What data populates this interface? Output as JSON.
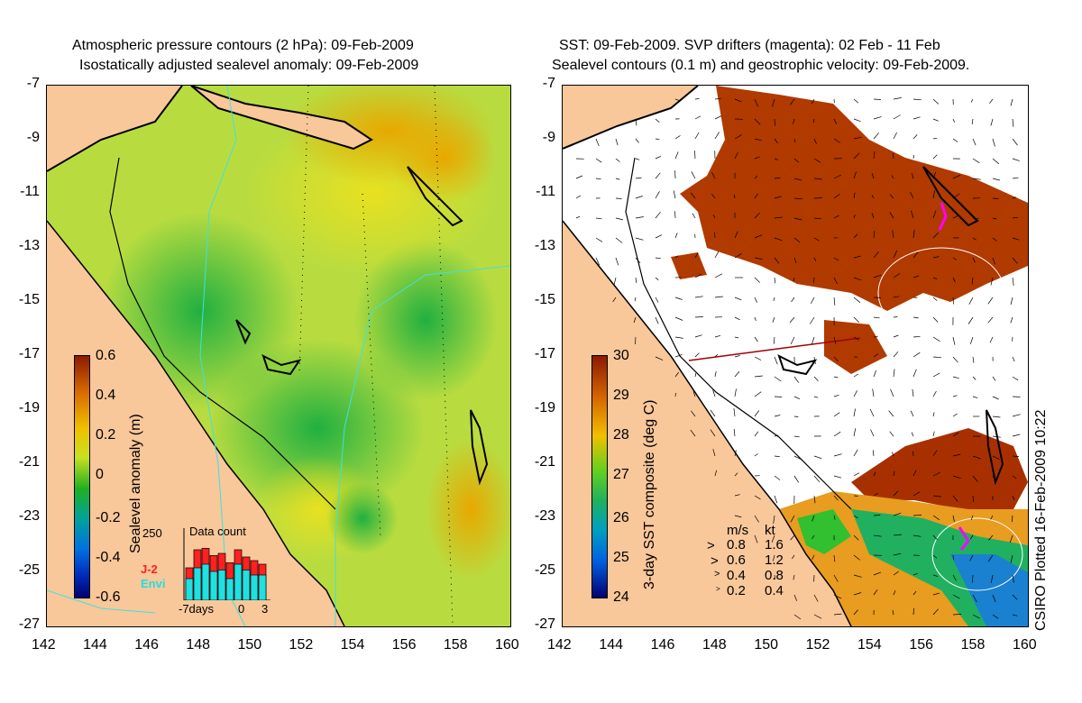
{
  "left_panel": {
    "title_line1": "Atmospheric pressure contours (2 hPa): 09-Feb-2009",
    "title_line2": "Isostatically adjusted sealevel anomaly: 09-Feb-2009",
    "colorbar_label": "Sealevel anomaly (m)",
    "colorbar_ticks": [
      "0.6",
      "0.4",
      "0.2",
      "0",
      "-0.2",
      "-0.4",
      "-0.6"
    ],
    "inset": {
      "ymax_label": "250",
      "title": "Data count",
      "legend_j2": "J-2",
      "legend_envi": "Envi",
      "xlabel_left": "-7days",
      "xlabel_mid": "0",
      "xlabel_right": "3",
      "bars_total": [
        0.45,
        0.7,
        0.72,
        0.62,
        0.65,
        0.52,
        0.7,
        0.6,
        0.55,
        0.5
      ],
      "bars_envi": [
        0.3,
        0.45,
        0.5,
        0.4,
        0.42,
        0.3,
        0.5,
        0.42,
        0.35,
        0.35
      ]
    }
  },
  "right_panel": {
    "title_line1": "SST: 09-Feb-2009. SVP drifters (magenta): 02 Feb - 11 Feb",
    "title_line2": "Sealevel contours (0.1 m) and geostrophic velocity: 09-Feb-2009.",
    "colorbar_label": "3-day SST composite (deg C)",
    "colorbar_ticks": [
      "30",
      "29",
      "28",
      "27",
      "26",
      "25",
      "24"
    ],
    "velocity_legend": {
      "header_ms": "m/s",
      "header_kt": "kt",
      "rows": [
        {
          "ms": "0.8",
          "kt": "1.6"
        },
        {
          "ms": "0.6",
          "kt": "1.2"
        },
        {
          "ms": "0.4",
          "kt": "0.8"
        },
        {
          "ms": "0.2",
          "kt": "0.4"
        }
      ]
    }
  },
  "axes": {
    "lat_ticks": [
      "-7",
      "-9",
      "-11",
      "-13",
      "-15",
      "-17",
      "-19",
      "-21",
      "-23",
      "-25",
      "-27"
    ],
    "lon_ticks": [
      "142",
      "144",
      "146",
      "148",
      "150",
      "152",
      "154",
      "156",
      "158",
      "160"
    ]
  },
  "credit": "CSIRO Plotted 16-Feb-2009 10:22",
  "colors": {
    "land": "#f8c79a",
    "sla_high": "#8b1a00",
    "sla_mid": "#c8e030",
    "sla_low": "#00006a",
    "sst_warm": "#b03a00",
    "cloud": "#ffffff",
    "drifter": "#ff00ff"
  }
}
